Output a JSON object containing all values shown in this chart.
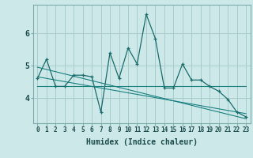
{
  "xlabel": "Humidex (Indice chaleur)",
  "ylabel": "",
  "bg_color": "#cde8e8",
  "grid_color": "#a8cccc",
  "line_color": "#1a6b6b",
  "line_color2": "#1a8080",
  "x_data": [
    0,
    1,
    2,
    3,
    4,
    5,
    6,
    7,
    8,
    9,
    10,
    11,
    12,
    13,
    14,
    15,
    16,
    17,
    18,
    19,
    20,
    21,
    22,
    23
  ],
  "y_main": [
    4.6,
    5.2,
    4.35,
    4.35,
    4.7,
    4.7,
    4.65,
    3.55,
    5.4,
    4.6,
    5.55,
    5.05,
    6.6,
    5.85,
    4.3,
    4.3,
    5.05,
    4.55,
    4.55,
    4.35,
    4.2,
    3.95,
    3.55,
    3.4
  ],
  "y_trend1": [
    4.95,
    4.88,
    4.81,
    4.74,
    4.67,
    4.6,
    4.53,
    4.46,
    4.39,
    4.32,
    4.25,
    4.18,
    4.11,
    4.04,
    3.97,
    3.9,
    3.83,
    3.76,
    3.69,
    3.62,
    3.55,
    3.48,
    3.41,
    3.34
  ],
  "y_trend2": [
    4.35,
    4.35,
    4.35,
    4.35,
    4.35,
    4.35,
    4.35,
    4.35,
    4.35,
    4.35,
    4.35,
    4.35,
    4.35,
    4.35,
    4.35,
    4.35,
    4.35,
    4.35,
    4.35,
    4.35,
    4.35,
    4.35,
    4.35,
    4.35
  ],
  "y_trend3": [
    4.65,
    4.6,
    4.55,
    4.5,
    4.45,
    4.4,
    4.35,
    4.3,
    4.25,
    4.2,
    4.15,
    4.1,
    4.05,
    4.0,
    3.95,
    3.9,
    3.85,
    3.8,
    3.75,
    3.7,
    3.65,
    3.6,
    3.55,
    3.5
  ],
  "xlim": [
    -0.5,
    23.5
  ],
  "ylim": [
    3.2,
    6.9
  ],
  "yticks": [
    4,
    5,
    6
  ],
  "xticks": [
    0,
    1,
    2,
    3,
    4,
    5,
    6,
    7,
    8,
    9,
    10,
    11,
    12,
    13,
    14,
    15,
    16,
    17,
    18,
    19,
    20,
    21,
    22,
    23
  ],
  "tick_fontsize": 5.5,
  "label_fontsize": 7.0
}
